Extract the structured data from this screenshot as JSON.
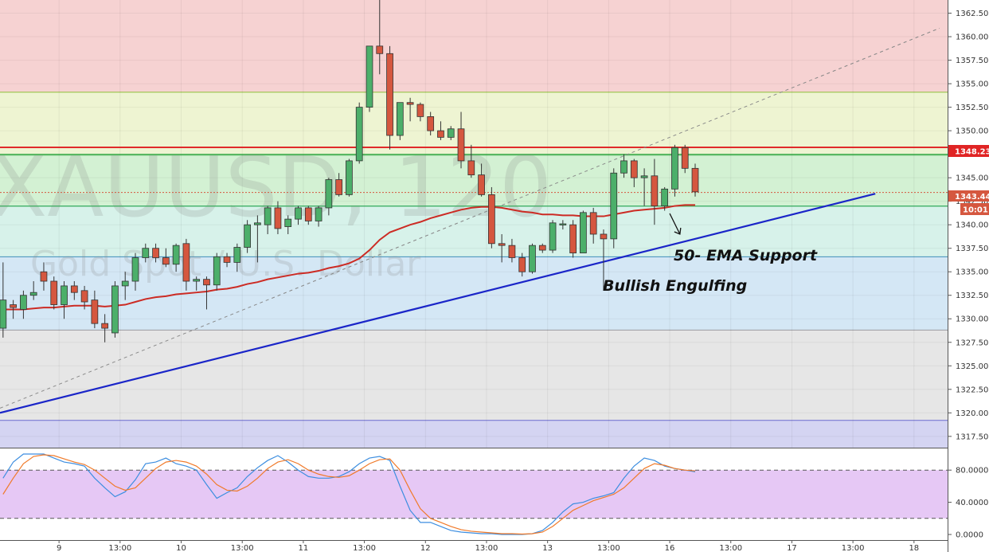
{
  "watermark": {
    "symbol": "XAUUSD, 120",
    "description": "Gold Spot / U.S. Dollar"
  },
  "price_labels": {
    "resistance": "1348.23",
    "last_price": "1343.44",
    "countdown": "10:01"
  },
  "annotations": {
    "ema_support": "50- EMA Support",
    "bullish_engulfing": "Bullish Engulfing"
  },
  "colors": {
    "bull": "#4caf6a",
    "bear": "#d5573f",
    "ema": "#cc2b24",
    "trendline": "#1a25c8",
    "resistance": "#e02a2a",
    "stoch_k": "#3d8ee0",
    "stoch_d": "#f07a2a"
  },
  "chart_data": [
    {
      "type": "candlestick",
      "instrument": "XAUUSD",
      "timeframe": "120",
      "y_ticks": [
        "1317.50",
        "1320.00",
        "1322.50",
        "1325.00",
        "1327.50",
        "1330.00",
        "1332.50",
        "1335.00",
        "1337.50",
        "1340.00",
        "1342.50",
        "1345.00",
        "1347.50",
        "1350.00",
        "1352.50",
        "1355.00",
        "1357.50",
        "1360.00",
        "1362.50"
      ],
      "ylim": [
        1316.3,
        1363.9
      ],
      "x_ticks": [
        {
          "label": "9",
          "index": 5.5
        },
        {
          "label": "13:00",
          "index": 11.5
        },
        {
          "label": "10",
          "index": 17.5
        },
        {
          "label": "13:00",
          "index": 23.5
        },
        {
          "label": "11",
          "index": 29.5
        },
        {
          "label": "13:00",
          "index": 35.5
        },
        {
          "label": "12",
          "index": 41.5
        },
        {
          "label": "13:00",
          "index": 47.5
        },
        {
          "label": "13",
          "index": 53.5
        },
        {
          "label": "13:00",
          "index": 59.5
        },
        {
          "label": "16",
          "index": 65.5
        },
        {
          "label": "13:00",
          "index": 71.5
        },
        {
          "label": "17",
          "index": 77.5
        },
        {
          "label": "13:00",
          "index": 83.5
        },
        {
          "label": "18",
          "index": 89.5
        }
      ],
      "x_range": [
        -0.3,
        92.8
      ],
      "candles": [
        {
          "o": 1329,
          "h": 1336,
          "l": 1328,
          "c": 1332
        },
        {
          "o": 1331.5,
          "h": 1332,
          "l": 1330,
          "c": 1331.2
        },
        {
          "o": 1331,
          "h": 1333,
          "l": 1330,
          "c": 1332.5
        },
        {
          "o": 1332.5,
          "h": 1334,
          "l": 1332,
          "c": 1332.8
        },
        {
          "o": 1335,
          "h": 1336,
          "l": 1333,
          "c": 1334
        },
        {
          "o": 1334,
          "h": 1334.5,
          "l": 1331,
          "c": 1331.5
        },
        {
          "o": 1331.5,
          "h": 1334,
          "l": 1330,
          "c": 1333.5
        },
        {
          "o": 1333.5,
          "h": 1334,
          "l": 1332,
          "c": 1332.8
        },
        {
          "o": 1333,
          "h": 1333.5,
          "l": 1331,
          "c": 1331.8
        },
        {
          "o": 1332,
          "h": 1333,
          "l": 1329,
          "c": 1329.5
        },
        {
          "o": 1329.5,
          "h": 1330.5,
          "l": 1327.5,
          "c": 1329
        },
        {
          "o": 1328.5,
          "h": 1334,
          "l": 1328,
          "c": 1333.5
        },
        {
          "o": 1333.5,
          "h": 1335,
          "l": 1332,
          "c": 1334
        },
        {
          "o": 1334,
          "h": 1337,
          "l": 1333,
          "c": 1336.5
        },
        {
          "o": 1336.5,
          "h": 1338,
          "l": 1336,
          "c": 1337.5
        },
        {
          "o": 1337.5,
          "h": 1338,
          "l": 1336,
          "c": 1336.5
        },
        {
          "o": 1336.5,
          "h": 1337.5,
          "l": 1335.5,
          "c": 1335.8
        },
        {
          "o": 1335.8,
          "h": 1338,
          "l": 1335,
          "c": 1337.8
        },
        {
          "o": 1338,
          "h": 1338.5,
          "l": 1333,
          "c": 1334
        },
        {
          "o": 1334,
          "h": 1334.5,
          "l": 1333,
          "c": 1334.2
        },
        {
          "o": 1334.2,
          "h": 1334.5,
          "l": 1331,
          "c": 1333.6
        },
        {
          "o": 1333.6,
          "h": 1337,
          "l": 1333,
          "c": 1336.6
        },
        {
          "o": 1336.6,
          "h": 1337,
          "l": 1335.5,
          "c": 1336
        },
        {
          "o": 1336,
          "h": 1338,
          "l": 1335,
          "c": 1337.6
        },
        {
          "o": 1337.6,
          "h": 1340.5,
          "l": 1337,
          "c": 1340
        },
        {
          "o": 1340,
          "h": 1341,
          "l": 1336,
          "c": 1340.2
        },
        {
          "o": 1340,
          "h": 1342,
          "l": 1339,
          "c": 1341.8
        },
        {
          "o": 1341.8,
          "h": 1342.5,
          "l": 1339,
          "c": 1339.6
        },
        {
          "o": 1339.8,
          "h": 1341,
          "l": 1339,
          "c": 1340.6
        },
        {
          "o": 1340.6,
          "h": 1342,
          "l": 1340,
          "c": 1341.8
        },
        {
          "o": 1341.8,
          "h": 1342,
          "l": 1340,
          "c": 1340.4
        },
        {
          "o": 1340.4,
          "h": 1342,
          "l": 1339.8,
          "c": 1341.8
        },
        {
          "o": 1341.8,
          "h": 1345,
          "l": 1341,
          "c": 1344.8
        },
        {
          "o": 1344.8,
          "h": 1345.5,
          "l": 1343,
          "c": 1343.2
        },
        {
          "o": 1343.2,
          "h": 1347,
          "l": 1343,
          "c": 1346.8
        },
        {
          "o": 1346.8,
          "h": 1353,
          "l": 1346.5,
          "c": 1352.5
        },
        {
          "o": 1352.5,
          "h": 1359,
          "l": 1352,
          "c": 1359
        },
        {
          "o": 1359,
          "h": 1365,
          "l": 1356,
          "c": 1358.2
        },
        {
          "o": 1358.2,
          "h": 1359,
          "l": 1348,
          "c": 1349.5
        },
        {
          "o": 1349.5,
          "h": 1353,
          "l": 1349,
          "c": 1353
        },
        {
          "o": 1353,
          "h": 1353.5,
          "l": 1351,
          "c": 1352.8
        },
        {
          "o": 1352.8,
          "h": 1353,
          "l": 1351,
          "c": 1351.5
        },
        {
          "o": 1351.5,
          "h": 1352,
          "l": 1349.5,
          "c": 1350
        },
        {
          "o": 1350,
          "h": 1351,
          "l": 1349,
          "c": 1349.3
        },
        {
          "o": 1349.3,
          "h": 1350.5,
          "l": 1349,
          "c": 1350.2
        },
        {
          "o": 1350.2,
          "h": 1352,
          "l": 1346,
          "c": 1346.8
        },
        {
          "o": 1346.8,
          "h": 1348.5,
          "l": 1345,
          "c": 1345.3
        },
        {
          "o": 1345.3,
          "h": 1346.5,
          "l": 1343,
          "c": 1343.2
        },
        {
          "o": 1343.2,
          "h": 1344,
          "l": 1337.5,
          "c": 1338
        },
        {
          "o": 1338,
          "h": 1339,
          "l": 1336,
          "c": 1337.8
        },
        {
          "o": 1337.8,
          "h": 1338.5,
          "l": 1336,
          "c": 1336.5
        },
        {
          "o": 1336.5,
          "h": 1337,
          "l": 1334.5,
          "c": 1335
        },
        {
          "o": 1335,
          "h": 1338,
          "l": 1334.8,
          "c": 1337.8
        },
        {
          "o": 1337.8,
          "h": 1338,
          "l": 1337,
          "c": 1337.3
        },
        {
          "o": 1337.3,
          "h": 1340.5,
          "l": 1337,
          "c": 1340.2
        },
        {
          "o": 1340,
          "h": 1340.5,
          "l": 1339.5,
          "c": 1340.1
        },
        {
          "o": 1340,
          "h": 1340.5,
          "l": 1336.5,
          "c": 1337
        },
        {
          "o": 1337,
          "h": 1341.5,
          "l": 1337,
          "c": 1341.3
        },
        {
          "o": 1341.3,
          "h": 1341.8,
          "l": 1338,
          "c": 1339
        },
        {
          "o": 1339,
          "h": 1339.5,
          "l": 1333,
          "c": 1338.5
        },
        {
          "o": 1338.5,
          "h": 1346,
          "l": 1337.5,
          "c": 1345.5
        },
        {
          "o": 1345.5,
          "h": 1347.5,
          "l": 1345,
          "c": 1346.8
        },
        {
          "o": 1346.8,
          "h": 1347,
          "l": 1344,
          "c": 1345
        },
        {
          "o": 1345,
          "h": 1346,
          "l": 1342,
          "c": 1345.2
        },
        {
          "o": 1345.2,
          "h": 1347,
          "l": 1340,
          "c": 1342
        },
        {
          "o": 1342,
          "h": 1344,
          "l": 1341.5,
          "c": 1343.8
        },
        {
          "o": 1343.8,
          "h": 1348.5,
          "l": 1343,
          "c": 1348.2
        },
        {
          "o": 1348.2,
          "h": 1348.5,
          "l": 1345.5,
          "c": 1346
        },
        {
          "o": 1346,
          "h": 1346.5,
          "l": 1343,
          "c": 1343.5
        }
      ],
      "ema": {
        "name": "50- EMA",
        "values": [
          1331,
          1331,
          1331,
          1331.1,
          1331.2,
          1331.2,
          1331.3,
          1331.4,
          1331.4,
          1331.4,
          1331.3,
          1331.4,
          1331.5,
          1331.8,
          1332.1,
          1332.3,
          1332.4,
          1332.6,
          1332.7,
          1332.8,
          1332.9,
          1333.1,
          1333.2,
          1333.4,
          1333.7,
          1333.9,
          1334.2,
          1334.4,
          1334.6,
          1334.8,
          1334.9,
          1335.1,
          1335.4,
          1335.6,
          1335.9,
          1336.4,
          1337.3,
          1338.4,
          1339.2,
          1339.6,
          1340,
          1340.3,
          1340.7,
          1341,
          1341.3,
          1341.6,
          1341.8,
          1341.9,
          1341.9,
          1341.8,
          1341.6,
          1341.4,
          1341.3,
          1341.1,
          1341.1,
          1341,
          1341,
          1340.9,
          1340.9,
          1340.9,
          1341.1,
          1341.3,
          1341.5,
          1341.6,
          1341.7,
          1341.8,
          1342,
          1342.1,
          1342.1
        ]
      },
      "trendline": {
        "from": {
          "index": -0.3,
          "price": 1320
        },
        "to": {
          "index": 85.7,
          "price": 1343.3
        }
      },
      "dashed_line": {
        "from": {
          "index": -0.3,
          "price": 1320.5
        },
        "to": {
          "index": 92.0,
          "price": 1360.9
        }
      },
      "horizontal_levels": [
        {
          "price": 1348.23,
          "style": "resistance"
        },
        {
          "price": 1347.5,
          "style": "green"
        },
        {
          "price": 1343.44,
          "style": "last-price-dotted"
        },
        {
          "price": 1341.97,
          "style": "green"
        }
      ],
      "bands": [
        {
          "from": 1354.1,
          "to": 1363.9,
          "color": "#f6d2d2",
          "line": "#c0605a"
        },
        {
          "from": 1347.4,
          "to": 1354.1,
          "color": "#eef4d2",
          "line": "#8fbf3a"
        },
        {
          "from": 1342.0,
          "to": 1347.4,
          "color": "#d3f1d3",
          "line": "#3fae4e"
        },
        {
          "from": 1336.6,
          "to": 1342.0,
          "color": "#d7f2ea",
          "line": "#2aa898"
        },
        {
          "from": 1328.8,
          "to": 1336.6,
          "color": "#d4e7f5",
          "line": "#3f8fb8"
        },
        {
          "from": 1319.2,
          "to": 1328.8,
          "color": "#e6e6e6",
          "line": "#9a9aa0"
        },
        {
          "from": 1316.3,
          "to": 1319.2,
          "color": "#d4d4f2",
          "line": "#6a6ad0"
        }
      ],
      "annotation_arrow": {
        "from": {
          "index": 65.5,
          "price": 1341.2
        },
        "to": {
          "index": 66.5,
          "price": 1339.0
        }
      }
    },
    {
      "type": "line",
      "indicator": "stochastic",
      "y_ticks": [
        "0.0000",
        "40.0000",
        "80.0000"
      ],
      "ylim": [
        0,
        100
      ],
      "overbought": 80,
      "oversold": 20,
      "series": [
        {
          "values": [
            70,
            90,
            100,
            100,
            100,
            95,
            90,
            88,
            85,
            70,
            58,
            47,
            53,
            68,
            88,
            90,
            95,
            88,
            85,
            80,
            62,
            45,
            52,
            58,
            72,
            83,
            92,
            98,
            90,
            80,
            72,
            70,
            70,
            72,
            78,
            88,
            95,
            97,
            92,
            60,
            30,
            15,
            15,
            10,
            5,
            3,
            2,
            1,
            1,
            0,
            0,
            0,
            1,
            5,
            15,
            28,
            38,
            40,
            45,
            48,
            52,
            70,
            85,
            95,
            92,
            85,
            82,
            80,
            78
          ]
        },
        {
          "values": [
            50,
            70,
            88,
            97,
            99,
            98,
            94,
            90,
            87,
            80,
            70,
            60,
            55,
            58,
            70,
            82,
            90,
            92,
            90,
            85,
            75,
            62,
            55,
            54,
            60,
            70,
            82,
            90,
            93,
            88,
            80,
            75,
            72,
            71,
            73,
            80,
            88,
            93,
            94,
            80,
            55,
            32,
            20,
            15,
            10,
            6,
            4,
            3,
            2,
            1,
            1,
            0.5,
            1,
            3,
            10,
            20,
            30,
            36,
            42,
            46,
            50,
            58,
            70,
            82,
            88,
            86,
            82,
            80,
            79
          ]
        }
      ]
    }
  ]
}
